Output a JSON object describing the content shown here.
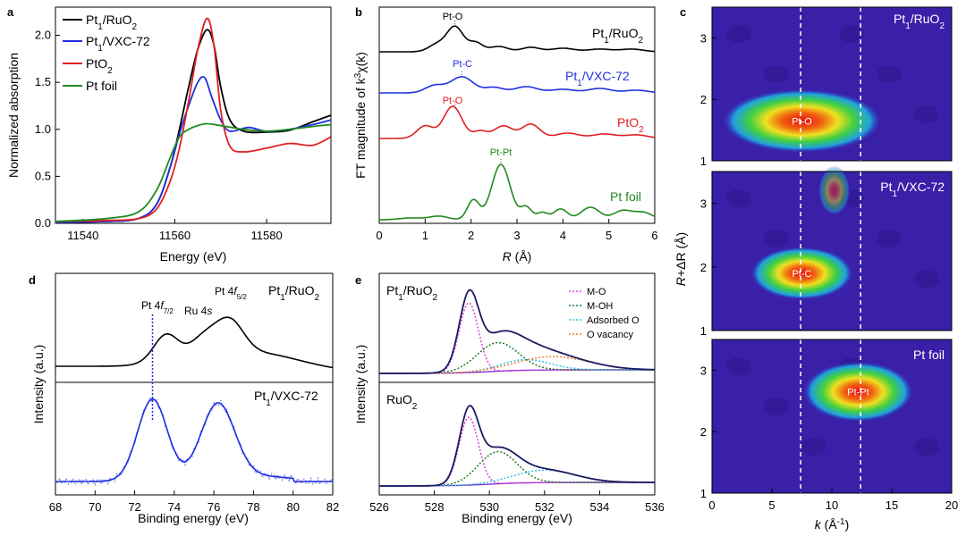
{
  "chart_data": [
    {
      "panel": "a",
      "type": "line",
      "xlabel": "Energy (eV)",
      "ylabel": "Normalized absorption",
      "xlim": [
        11534,
        11594
      ],
      "ylim": [
        0,
        2.3
      ],
      "xticks": [
        11540,
        11560,
        11580
      ],
      "yticks": [
        0.0,
        0.5,
        1.0,
        1.5,
        2.0
      ],
      "legend": [
        {
          "label": "Pt1/RuO2",
          "color": "#000000"
        },
        {
          "label": "Pt1/VXC-72",
          "color": "#1f2fe0"
        },
        {
          "label": "PtO2",
          "color": "#e02020"
        },
        {
          "label": "Pt foil",
          "color": "#1f8a1f"
        }
      ],
      "series": [
        {
          "name": "Pt1/RuO2",
          "color": "#000000",
          "points": [
            [
              11534,
              0.01
            ],
            [
              11545,
              0.02
            ],
            [
              11552,
              0.05
            ],
            [
              11556,
              0.2
            ],
            [
              11559,
              0.6
            ],
            [
              11561,
              1.0
            ],
            [
              11563,
              1.45
            ],
            [
              11565,
              1.85
            ],
            [
              11567,
              2.06
            ],
            [
              11568.5,
              1.9
            ],
            [
              11570,
              1.45
            ],
            [
              11572,
              1.1
            ],
            [
              11575,
              0.98
            ],
            [
              11580,
              0.97
            ],
            [
              11585,
              0.99
            ],
            [
              11590,
              1.08
            ],
            [
              11594,
              1.15
            ]
          ]
        },
        {
          "name": "Pt1/VXC-72",
          "color": "#1f2fe0",
          "points": [
            [
              11534,
              0.01
            ],
            [
              11545,
              0.02
            ],
            [
              11552,
              0.05
            ],
            [
              11556,
              0.2
            ],
            [
              11559,
              0.6
            ],
            [
              11561,
              0.95
            ],
            [
              11563,
              1.25
            ],
            [
              11565,
              1.5
            ],
            [
              11566.5,
              1.55
            ],
            [
              11568,
              1.35
            ],
            [
              11570,
              1.1
            ],
            [
              11572,
              0.98
            ],
            [
              11576,
              1.02
            ],
            [
              11580,
              0.98
            ],
            [
              11585,
              1.0
            ],
            [
              11590,
              1.05
            ],
            [
              11594,
              1.1
            ]
          ]
        },
        {
          "name": "PtO2",
          "color": "#e02020",
          "points": [
            [
              11534,
              0.02
            ],
            [
              11545,
              0.03
            ],
            [
              11552,
              0.05
            ],
            [
              11556,
              0.15
            ],
            [
              11559,
              0.45
            ],
            [
              11561,
              0.8
            ],
            [
              11563,
              1.3
            ],
            [
              11565,
              1.85
            ],
            [
              11567,
              2.18
            ],
            [
              11568.5,
              1.9
            ],
            [
              11570,
              1.2
            ],
            [
              11572,
              0.82
            ],
            [
              11575,
              0.76
            ],
            [
              11580,
              0.8
            ],
            [
              11585,
              0.85
            ],
            [
              11590,
              0.83
            ],
            [
              11594,
              0.92
            ]
          ]
        },
        {
          "name": "Pt foil",
          "color": "#1f8a1f",
          "points": [
            [
              11534,
              0.02
            ],
            [
              11545,
              0.05
            ],
            [
              11552,
              0.12
            ],
            [
              11556,
              0.35
            ],
            [
              11559,
              0.7
            ],
            [
              11561,
              0.92
            ],
            [
              11563,
              1.0
            ],
            [
              11565,
              1.04
            ],
            [
              11567,
              1.06
            ],
            [
              11570,
              1.04
            ],
            [
              11575,
              1.0
            ],
            [
              11580,
              0.98
            ],
            [
              11585,
              1.0
            ],
            [
              11590,
              1.03
            ],
            [
              11594,
              1.05
            ]
          ]
        }
      ]
    },
    {
      "panel": "b",
      "type": "line",
      "xlabel": "R (Å)",
      "ylabel": "FT magnitude of k³χ(k)",
      "xlim": [
        0,
        6
      ],
      "xticks": [
        0,
        1,
        2,
        3,
        4,
        5,
        6
      ],
      "series": [
        {
          "name": "Pt1/RuO2",
          "label": "Pt1/RuO2",
          "peak_label": "Pt-O",
          "peak_r": 1.65,
          "color": "#000000"
        },
        {
          "name": "Pt1/VXC-72",
          "label": "Pt1/VXC-72",
          "peak_label": "Pt-C",
          "peak_r": 1.8,
          "color": "#1f2fe0"
        },
        {
          "name": "PtO2",
          "label": "PtO2",
          "peak_label": "Pt-O",
          "peak_r": 1.65,
          "color": "#e02020"
        },
        {
          "name": "Pt foil",
          "label": "Pt foil",
          "peak_label": "Pt-Pt",
          "peak_r": 2.65,
          "color": "#1f8a1f"
        }
      ]
    },
    {
      "panel": "c",
      "type": "heatmap",
      "xlabel": "k (Å⁻¹)",
      "ylabel": "R+ΔR (Å)",
      "xlim": [
        0,
        20
      ],
      "xticks": [
        0,
        5,
        10,
        15,
        20
      ],
      "dashed_k": [
        7.4,
        12.4
      ],
      "maps": [
        {
          "label": "Pt1/RuO2",
          "center_label": "Pt-O",
          "center": [
            7.5,
            1.65
          ],
          "ylim": [
            1,
            3.5
          ],
          "yticks": [
            1,
            2,
            3
          ]
        },
        {
          "label": "Pt1/VXC-72",
          "center_label": "Pt-C",
          "center": [
            7.5,
            1.9
          ],
          "ylim": [
            1,
            3.5
          ],
          "yticks": [
            1,
            2,
            3
          ]
        },
        {
          "label": "Pt foil",
          "center_label": "Pt-Pt",
          "center": [
            12.2,
            2.65
          ],
          "ylim": [
            1,
            3.5
          ],
          "yticks": [
            1,
            2,
            3
          ]
        }
      ]
    },
    {
      "panel": "d",
      "type": "line",
      "xlabel": "Binding energy (eV)",
      "ylabel": "Intensity (a.u.)",
      "xlim": [
        68,
        82
      ],
      "xticks": [
        68,
        70,
        72,
        74,
        76,
        78,
        80,
        82
      ],
      "peak_labels": [
        "Pt 4f7/2",
        "Ru 4s",
        "Pt 4f5/2"
      ],
      "dotted_line_be": 72.9,
      "top_label": "Pt1/RuO2",
      "bottom_label": "Pt1/VXC-72",
      "bottom_peaks_be": [
        72.9,
        76.2
      ]
    },
    {
      "panel": "e",
      "type": "line",
      "xlabel": "Binding energy (eV)",
      "ylabel": "Intensity (a.u.)",
      "xlim": [
        526,
        536
      ],
      "xticks": [
        526,
        528,
        530,
        532,
        534,
        536
      ],
      "legend": [
        {
          "label": "M-O",
          "color": "#e040e0"
        },
        {
          "label": "M-OH",
          "color": "#1f7a1f"
        },
        {
          "label": "Adsorbed O",
          "color": "#30c0f0"
        },
        {
          "label": "O vacancy",
          "color": "#f08030"
        }
      ],
      "top_label": "Pt1/RuO2",
      "bottom_label": "RuO2",
      "components_top": [
        {
          "name": "M-O",
          "center": 529.25,
          "amp": 0.78,
          "width": 0.35
        },
        {
          "name": "M-OH",
          "center": 530.3,
          "amp": 0.32,
          "width": 0.75
        },
        {
          "name": "Adsorbed O",
          "center": 531.3,
          "amp": 0.12,
          "width": 0.9
        },
        {
          "name": "O vacancy",
          "center": 532.3,
          "amp": 0.15,
          "width": 1.3
        }
      ],
      "components_bottom": [
        {
          "name": "M-O",
          "center": 529.25,
          "amp": 0.76,
          "width": 0.35
        },
        {
          "name": "M-OH",
          "center": 530.3,
          "amp": 0.36,
          "width": 0.7
        },
        {
          "name": "Adsorbed O",
          "center": 532.0,
          "amp": 0.14,
          "width": 1.1
        }
      ]
    }
  ]
}
